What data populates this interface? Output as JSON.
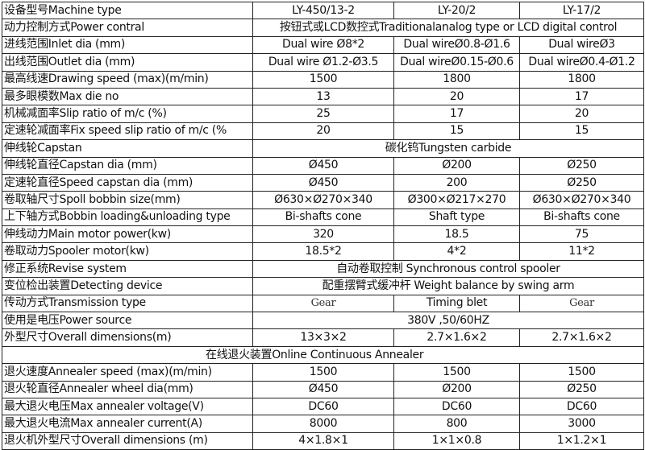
{
  "rows": [
    {
      "label": "设备型号Machine type",
      "values": [
        "LY-450/13-2",
        "LY-20/2",
        "LY-17/2"
      ]
    },
    {
      "label": "动力控制方式Power contral",
      "span": "按钮式或LCD数控式Traditionalanalog type or LCD digital control"
    },
    {
      "label": "进线范围Inlet dia (mm)",
      "values": [
        "Dual wire  Ø8*2",
        "Dual wireØ0.8-Ø1.6",
        "Dual wireØ3"
      ]
    },
    {
      "label": "出线范围Outlet dia (mm)",
      "values": [
        "Dual wire  Ø1.2-Ø3.5",
        "Dual wireØ0.15-Ø0.6",
        "Dual wireØ0.4-Ø1.2"
      ]
    },
    {
      "label": "最高线速Drawing speed (max)(m/min)",
      "values": [
        "1500",
        "1800",
        "1800"
      ]
    },
    {
      "label": "最多眼模数Max die no",
      "values": [
        "13",
        "20",
        "17"
      ]
    },
    {
      "label": "机械减面率Slip ratio of m/c (%)",
      "values": [
        "25",
        "17",
        "20"
      ]
    },
    {
      "label": "定速轮减面率Fix speed slip ratio of m/c (%",
      "values": [
        "20",
        "15",
        "15"
      ]
    },
    {
      "label": "伸线轮Capstan",
      "span": "碳化钨Tungsten carbide"
    },
    {
      "label": "伸线轮直径Capstan dia (mm)",
      "values": [
        "Ø450",
        "Ø200",
        "Ø250"
      ]
    },
    {
      "label": "定速轮直径Speed capstan dia (mm)",
      "values": [
        "Ø450",
        "200",
        "Ø250"
      ]
    },
    {
      "label": "卷取轴尺寸Spoll bobbin size(mm)",
      "values": [
        "Ø630×Ø270×340",
        "Ø300×Ø217×270",
        "Ø630×Ø270×340"
      ]
    },
    {
      "label": "上下轴方式Bobbin loading&unloading type",
      "values": [
        "Bi-shafts cone",
        "Shaft type",
        "Bi-shafts cone"
      ]
    },
    {
      "label": "伸线动力Main motor power(kw)",
      "values": [
        "320",
        "18.5",
        "75"
      ]
    },
    {
      "label": "卷取动力Spooler motor(kw)",
      "values": [
        "18.5*2",
        "4*2",
        "11*2"
      ]
    },
    {
      "label": "修正系统Revise system",
      "span": "自动卷取控制 Synchronous control spooler"
    },
    {
      "label": "变位检出装置Detecting device",
      "span": "配重摆臂式缓冲杆 Weight balance by swing arm"
    },
    {
      "label": "传动方式Transmission type",
      "values": [
        "Gear",
        "Timing blet",
        "Gear"
      ],
      "mono": [
        true,
        false,
        true
      ]
    },
    {
      "label": "使用是电压Power source",
      "span": "380V ,50/60HZ"
    },
    {
      "label": "外型尺寸Overall dimensions(m)",
      "values": [
        "13×3×2",
        "2.7×1.6×2",
        "2.7×1.6×2"
      ]
    },
    {
      "section": "在线退火装置Online Continuous Annealer"
    },
    {
      "label": "退火速度Annealer speed (max)(m/min)",
      "values": [
        "1500",
        "1500",
        "1500"
      ]
    },
    {
      "label": "退火轮直径Annealer wheel dia(mm)",
      "values": [
        "Ø450",
        "Ø200",
        "Ø250"
      ]
    },
    {
      "label": "最大退火电压Max annealer voltage(V)",
      "values": [
        "DC60",
        "DC60",
        "DC60"
      ]
    },
    {
      "label": "最大退火电流Max annealer current(A)",
      "values": [
        "8000",
        "800",
        "3000"
      ]
    },
    {
      "label": "退火机外型尺寸Overall dimensions (m)",
      "values": [
        "4×1.8×1",
        "1×1×0.8",
        "1×1.2×1"
      ]
    }
  ]
}
